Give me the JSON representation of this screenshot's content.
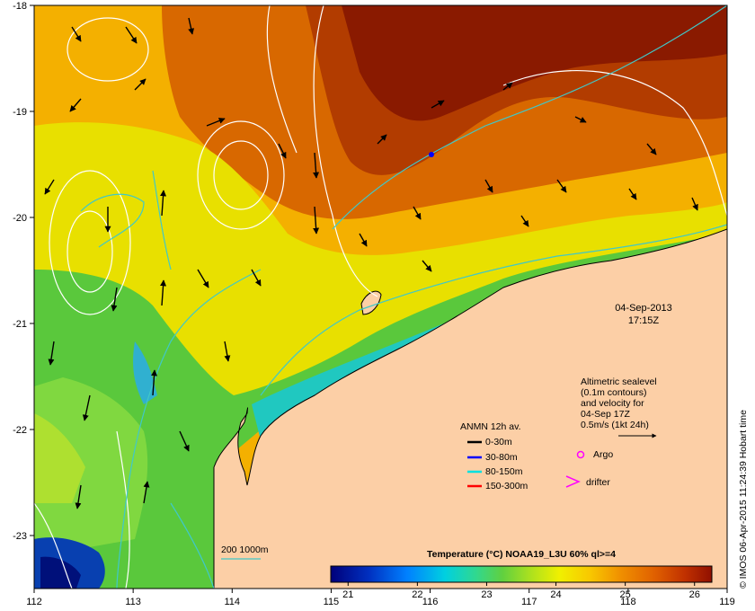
{
  "map": {
    "lon_ticks": [
      "112",
      "113",
      "114",
      "115",
      "116",
      "117",
      "118",
      "119"
    ],
    "lat_ticks": [
      "-18",
      "-19",
      "-20",
      "-21",
      "-22",
      "-23"
    ],
    "lon_range": [
      112,
      119
    ],
    "lat_range": [
      -18,
      -23.5
    ],
    "land_color": "#fccfa6",
    "contour_color": "#ffffff",
    "isobath_color": "#40c8c8"
  },
  "datetime": {
    "date": "04-Sep-2013",
    "time": "17:15Z"
  },
  "altimetry": {
    "lines": [
      "Altimetric sealevel",
      "(0.1m contours)",
      "and velocity for",
      "04-Sep 17Z",
      "0.5m/s (1kt 24h)"
    ]
  },
  "anmn": {
    "title": "ANMN 12h av.",
    "items": [
      {
        "label": "0-30m",
        "color": "#000000"
      },
      {
        "label": "30-80m",
        "color": "#0000ff"
      },
      {
        "label": "80-150m",
        "color": "#00e0e0"
      },
      {
        "label": "150-300m",
        "color": "#ff0000"
      }
    ]
  },
  "markers": {
    "argo": "Argo",
    "drifter": "drifter",
    "argo_color": "#ff00ff",
    "drifter_color": "#ff00ff"
  },
  "isobath_legend": "200  1000m",
  "colorbar": {
    "title": "Temperature (°C) NOAA19_L3U 60% ql>=4",
    "ticks": [
      "21",
      "22",
      "23",
      "24",
      "25",
      "26"
    ],
    "range": [
      20.75,
      26.25
    ],
    "colors": [
      "#00007a",
      "#0030c0",
      "#0080ff",
      "#00d0e0",
      "#30d890",
      "#60d040",
      "#a8e020",
      "#f0f000",
      "#f8c800",
      "#f09000",
      "#e06000",
      "#c03000",
      "#901000"
    ]
  },
  "credit": "© IMOS 06-Apr-2015 11:24:39 Hobart time"
}
